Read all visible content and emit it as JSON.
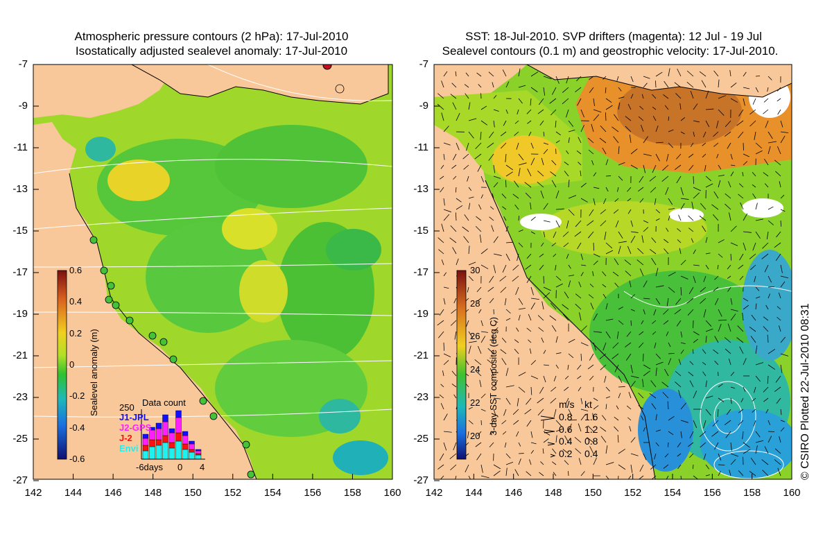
{
  "left_panel": {
    "title_line1": "Atmospheric pressure contours (2 hPa): 17-Jul-2010",
    "title_line2": "Isostatically adjusted sealevel anomaly: 17-Jul-2010",
    "colorbar": {
      "label": "Sealevel anomaly (m)",
      "ticks": [
        "0.6",
        "0.4",
        "0.2",
        "0",
        "-0.2",
        "-0.4",
        "-0.6"
      ]
    },
    "data_count": {
      "title": "Data count",
      "max_label": "250",
      "x_ticks": [
        "-6days",
        "0",
        "4"
      ],
      "sources": [
        {
          "name": "J1-JPL",
          "color": "#1010ff"
        },
        {
          "name": "J2-GPS",
          "color": "#ff20ff"
        },
        {
          "name": "J-2",
          "color": "#ff1010"
        },
        {
          "name": "Envi",
          "color": "#20f0f0"
        }
      ]
    }
  },
  "right_panel": {
    "title_line1": "SST: 18-Jul-2010. SVP drifters (magenta): 12 Jul - 19 Jul",
    "title_line2": "Sealevel contours (0.1 m) and geostrophic velocity: 17-Jul-2010.",
    "colorbar": {
      "label": "3-day SST composite (deg C)",
      "ticks": [
        "30",
        "28",
        "26",
        "24",
        "22",
        "20"
      ]
    },
    "velocity_legend": {
      "header_ms": "m/s",
      "header_kt": "kt",
      "rows": [
        {
          "ms": "0.8",
          "kt": "1.6"
        },
        {
          "ms": "0.6",
          "kt": "1.2"
        },
        {
          "ms": "0.4",
          "kt": "0.8"
        },
        {
          "ms": "0.2",
          "kt": "0.4"
        }
      ]
    }
  },
  "axes": {
    "lat_ticks": [
      "-7",
      "-9",
      "-11",
      "-13",
      "-15",
      "-17",
      "-19",
      "-21",
      "-23",
      "-25",
      "-27"
    ],
    "lon_ticks": [
      "142",
      "144",
      "146",
      "148",
      "150",
      "152",
      "154",
      "156",
      "158",
      "160"
    ]
  },
  "credit": "© CSIRO Plotted 22-Jul-2010 08:31",
  "colors": {
    "land": "#f9c89a",
    "ocean_green": "#44c22a",
    "ocean_yellow": "#c8e628",
    "sst_orange": "#e8902a"
  }
}
